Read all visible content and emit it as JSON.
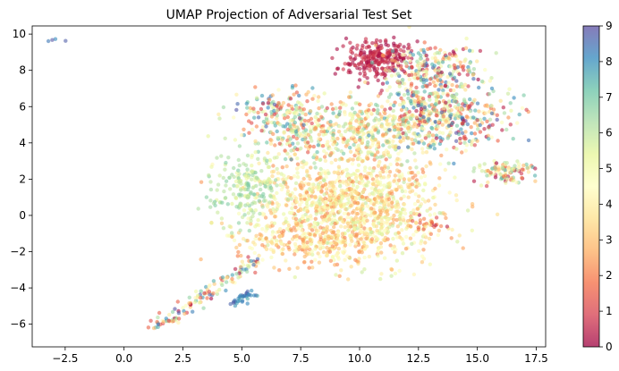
{
  "chart_data": {
    "type": "scatter",
    "title": "UMAP Projection of Adversarial Test Set",
    "xlabel": "",
    "ylabel": "",
    "xlim": [
      -3.9,
      17.9
    ],
    "ylim": [
      -7.25,
      10.45
    ],
    "x_ticks": [
      -2.5,
      0.0,
      2.5,
      5.0,
      7.5,
      10.0,
      12.5,
      15.0,
      17.5
    ],
    "x_tick_labels": [
      "−2.5",
      "0.0",
      "2.5",
      "5.0",
      "7.5",
      "10.0",
      "12.5",
      "15.0",
      "17.5"
    ],
    "y_ticks": [
      -6,
      -4,
      -2,
      0,
      2,
      4,
      6,
      8,
      10
    ],
    "y_tick_labels": [
      "−6",
      "−4",
      "−2",
      "0",
      "2",
      "4",
      "6",
      "8",
      "10"
    ],
    "grid": false,
    "colormap": "Spectral",
    "color_range": [
      0,
      9
    ],
    "colorbar_ticks": [
      0,
      1,
      2,
      3,
      4,
      5,
      6,
      7,
      8,
      9
    ],
    "colorbar_tick_labels": [
      "0",
      "1",
      "2",
      "3",
      "4",
      "5",
      "6",
      "7",
      "8",
      "9"
    ],
    "marker_alpha": 0.6,
    "clusters": [
      {
        "cx": -2.9,
        "cy": 9.7,
        "sx": 0.15,
        "sy": 0.1,
        "n": 4,
        "lo": 6,
        "hi": 9
      },
      {
        "cx": 9.5,
        "cy": 0.6,
        "sx": 2.0,
        "sy": 1.5,
        "n": 1200,
        "lo": 2,
        "hi": 6
      },
      {
        "cx": 8.0,
        "cy": -1.5,
        "sx": 1.6,
        "sy": 0.5,
        "n": 220,
        "lo": 2,
        "hi": 5
      },
      {
        "cx": 5.2,
        "cy": 1.5,
        "sx": 0.8,
        "sy": 1.0,
        "n": 200,
        "lo": 5,
        "hi": 7
      },
      {
        "cx": 10.5,
        "cy": 4.6,
        "sx": 1.4,
        "sy": 1.0,
        "n": 350,
        "lo": 2,
        "hi": 7
      },
      {
        "cx": 7.5,
        "cy": 4.6,
        "sx": 1.2,
        "sy": 0.8,
        "n": 200,
        "lo": 1,
        "hi": 8
      },
      {
        "cx": 6.5,
        "cy": 6.0,
        "sx": 0.8,
        "sy": 0.5,
        "n": 100,
        "lo": 0,
        "hi": 9
      },
      {
        "cx": 10.8,
        "cy": 8.6,
        "sx": 0.7,
        "sy": 0.5,
        "n": 250,
        "lo": 0,
        "hi": 1
      },
      {
        "cx": 13.0,
        "cy": 8.0,
        "sx": 1.0,
        "sy": 0.8,
        "n": 250,
        "lo": 0,
        "hi": 9
      },
      {
        "cx": 13.5,
        "cy": 5.5,
        "sx": 1.4,
        "sy": 0.9,
        "n": 450,
        "lo": 0,
        "hi": 9
      },
      {
        "cx": 16.2,
        "cy": 2.4,
        "sx": 0.6,
        "sy": 0.3,
        "n": 110,
        "lo": 0,
        "hi": 8
      },
      {
        "cx": 12.8,
        "cy": -0.4,
        "sx": 0.6,
        "sy": 0.25,
        "n": 30,
        "lo": 0,
        "hi": 4
      }
    ],
    "tails": [
      {
        "x0": 5.8,
        "y0": -2.4,
        "x1": 1.2,
        "y1": -6.3,
        "n": 130,
        "jx": 0.25,
        "jy": 0.15,
        "lo": 0,
        "hi": 9
      },
      {
        "x0": 5.4,
        "y0": -4.3,
        "x1": 4.6,
        "y1": -4.9,
        "n": 35,
        "jx": 0.15,
        "jy": 0.1,
        "lo": 7.5,
        "hi": 9
      }
    ]
  }
}
